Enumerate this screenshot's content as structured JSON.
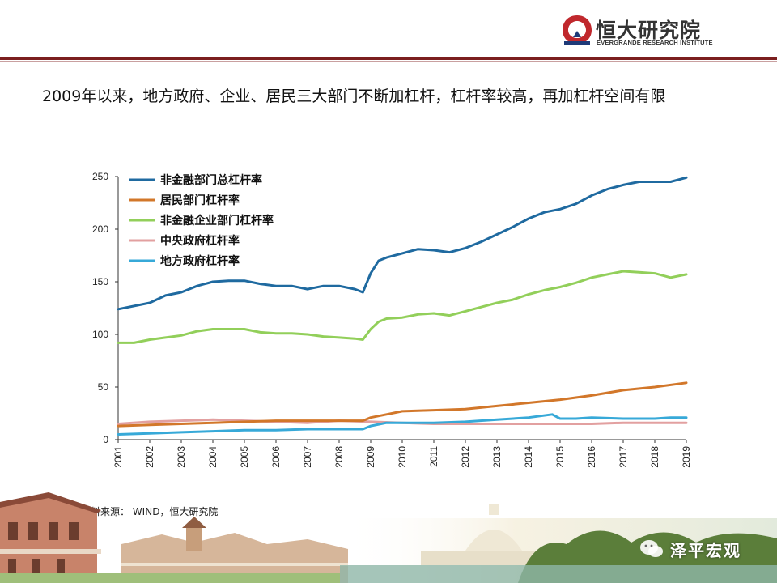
{
  "header": {
    "logo_cn": "恒大研究院",
    "logo_en": "EVERGRANDE RESEARCH INSTITUTE"
  },
  "headline": "2009年以来，地方政府、企业、居民三大部门不断加杠杆，杠杆率较高，再加杠杆空间有限",
  "source": "资料来源： WIND，恒大研究院",
  "watermark": "泽平宏观",
  "colors": {
    "rule": "#7b1f1f",
    "s1": "#1f6aa0",
    "s2": "#d2772a",
    "s3": "#92cf5a",
    "s4": "#e2a0a0",
    "s5": "#37a9d8"
  },
  "chart_data": {
    "type": "line",
    "title": "",
    "xlabel": "",
    "ylabel": "",
    "ylim": [
      0,
      250
    ],
    "yticks": [
      0,
      50,
      100,
      150,
      200,
      250
    ],
    "xlim": [
      2001,
      2019
    ],
    "xticks": [
      "2001",
      "2002",
      "2003",
      "2004",
      "2005",
      "2006",
      "2007",
      "2008",
      "2009",
      "2010",
      "2011",
      "2012",
      "2013",
      "2014",
      "2015",
      "2016",
      "2017",
      "2018",
      "2019"
    ],
    "grid": false,
    "legend_position": "top-left",
    "series": [
      {
        "name": "非金融部门总杠杆率",
        "color": "#1f6aa0",
        "x": [
          2001,
          2002,
          2002.5,
          2003,
          2003.5,
          2004,
          2004.5,
          2005,
          2005.5,
          2006,
          2006.5,
          2007,
          2007.5,
          2008,
          2008.5,
          2008.75,
          2009,
          2009.25,
          2009.5,
          2010,
          2010.5,
          2011,
          2011.5,
          2012,
          2012.5,
          2013,
          2013.5,
          2014,
          2014.5,
          2015,
          2015.5,
          2016,
          2016.5,
          2017,
          2017.5,
          2018,
          2018.5,
          2019
        ],
        "values": [
          124,
          130,
          137,
          140,
          146,
          150,
          151,
          151,
          148,
          146,
          146,
          143,
          146,
          146,
          143,
          140,
          158,
          170,
          173,
          177,
          181,
          180,
          178,
          182,
          188,
          195,
          202,
          210,
          216,
          219,
          224,
          232,
          238,
          242,
          245,
          245,
          245,
          249
        ]
      },
      {
        "name": "居民部门杠杆率",
        "color": "#d2772a",
        "x": [
          2001,
          2002,
          2003,
          2004,
          2005,
          2006,
          2007,
          2008,
          2008.75,
          2009,
          2009.5,
          2010,
          2011,
          2012,
          2013,
          2014,
          2015,
          2016,
          2017,
          2018,
          2019
        ],
        "values": [
          13,
          14,
          15,
          16,
          17,
          18,
          18,
          18,
          18,
          21,
          24,
          27,
          28,
          29,
          32,
          35,
          38,
          42,
          47,
          50,
          54
        ]
      },
      {
        "name": "非金融企业部门杠杆率",
        "color": "#92cf5a",
        "x": [
          2001,
          2001.5,
          2002,
          2002.5,
          2003,
          2003.5,
          2004,
          2004.5,
          2005,
          2005.5,
          2006,
          2006.5,
          2007,
          2007.5,
          2008,
          2008.5,
          2008.75,
          2009,
          2009.25,
          2009.5,
          2010,
          2010.5,
          2011,
          2011.5,
          2012,
          2012.5,
          2013,
          2013.5,
          2014,
          2014.5,
          2015,
          2015.5,
          2016,
          2016.5,
          2017,
          2017.5,
          2018,
          2018.5,
          2019
        ],
        "values": [
          92,
          92,
          95,
          97,
          99,
          103,
          105,
          105,
          105,
          102,
          101,
          101,
          100,
          98,
          97,
          96,
          95,
          105,
          112,
          115,
          116,
          119,
          120,
          118,
          122,
          126,
          130,
          133,
          138,
          142,
          145,
          149,
          154,
          157,
          160,
          159,
          158,
          154,
          157
        ]
      },
      {
        "name": "中央政府杠杆率",
        "color": "#e2a0a0",
        "x": [
          2001,
          2002,
          2003,
          2004,
          2005,
          2006,
          2007,
          2007.5,
          2008,
          2009,
          2010,
          2011,
          2012,
          2013,
          2014,
          2015,
          2016,
          2017,
          2018,
          2019
        ],
        "values": [
          15,
          17,
          18,
          19,
          18,
          17,
          16,
          17,
          18,
          17,
          16,
          15,
          15,
          15,
          15,
          15,
          15,
          16,
          16,
          16
        ]
      },
      {
        "name": "地方政府杠杆率",
        "color": "#37a9d8",
        "x": [
          2001,
          2002,
          2003,
          2004,
          2005,
          2006,
          2007,
          2008,
          2008.75,
          2009,
          2009.5,
          2010,
          2011,
          2012,
          2013,
          2014,
          2014.75,
          2015,
          2015.5,
          2016,
          2017,
          2018,
          2018.5,
          2019
        ],
        "values": [
          5,
          6,
          7,
          8,
          9,
          9,
          10,
          10,
          10,
          13,
          16,
          16,
          16,
          17,
          19,
          21,
          24,
          20,
          20,
          21,
          20,
          20,
          21,
          21
        ]
      }
    ]
  }
}
